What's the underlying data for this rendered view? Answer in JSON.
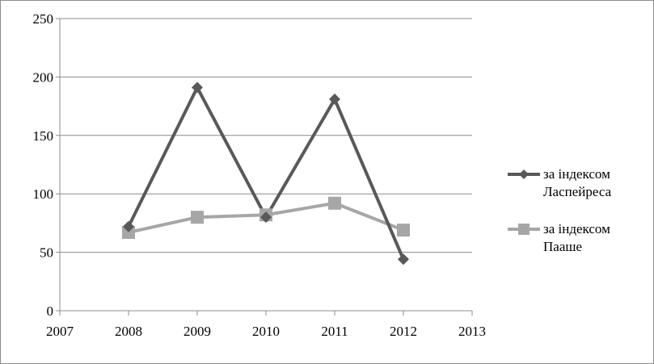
{
  "chart_data": {
    "type": "line",
    "title": "",
    "xlabel": "",
    "ylabel": "",
    "x": [
      2008,
      2009,
      2010,
      2011,
      2012
    ],
    "xlim": [
      2007,
      2013
    ],
    "ylim": [
      0,
      250
    ],
    "x_ticks": [
      "2007",
      "2008",
      "2009",
      "2010",
      "2011",
      "2012",
      "2013"
    ],
    "y_ticks": [
      "0",
      "50",
      "100",
      "150",
      "200",
      "250"
    ],
    "grid": "horizontal",
    "legend_position": "right",
    "series": [
      {
        "name": "за індексом Ласпейреса",
        "name_lines": [
          "за індексом",
          "Ласпейреса"
        ],
        "values": [
          72,
          191,
          80,
          181,
          44
        ],
        "color": "#595959",
        "marker": "diamond"
      },
      {
        "name": "за індексом Пааше",
        "name_lines": [
          "за індексом",
          "Пааше"
        ],
        "values": [
          67,
          80,
          82,
          92,
          69
        ],
        "color": "#a6a6a6",
        "marker": "square"
      }
    ]
  }
}
